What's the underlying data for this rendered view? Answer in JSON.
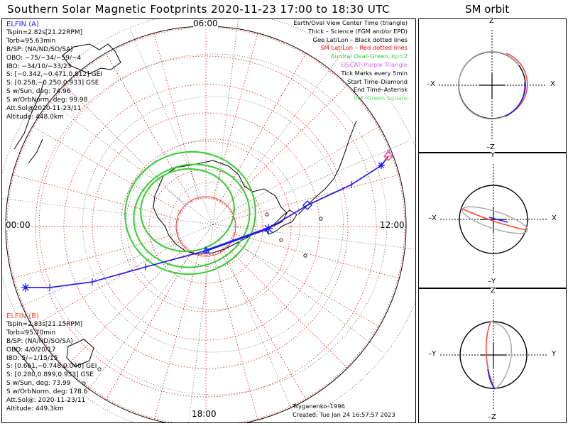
{
  "title": "Southern Solar Magnetic Footprints 2020-11-23 17:00 to 18:30 UTC",
  "orbit_title": "SM orbit",
  "colors": {
    "elfin_a": "#1a1aff",
    "elfin_b": "#ff4a3a",
    "grid": "#e03030",
    "oval": "#32cd32",
    "purple": "#cc66ff",
    "vlf": "#66dd66",
    "orbit_gray": "#aaaaaa"
  },
  "clock_labels": {
    "top": "06:00",
    "left": "00:00",
    "right": "12:00",
    "bottom": "18:00"
  },
  "elfin_a": {
    "name": "ELFIN (A)",
    "lines": [
      "Tspin=2.82s[21.22RPM]",
      "Torb=95.63min",
      "B/SP: (NA/ND/SO/SA)",
      "OBO: −75/−34/−59/−4",
      "IBO: −34/10/−33/23",
      "S: [−0.342,−0.471,0.812] GEI",
      "S: [0.258,−0.250,0.933] GSE",
      "S w/Sun, deg: 74.96",
      "S w/OrbNorm, deg: 99.98",
      "Att.Sol@2020-11-23/11",
      "Altitude: 448.0km"
    ]
  },
  "elfin_b": {
    "name": "ELFIN (B)",
    "lines": [
      "Tspin=2.83s[21.15RPM]",
      "Torb=95.70min",
      "B/SP: (NA/ND/SO/SA)",
      "OBO: 4/0/20/17",
      "IBO: 5/−1/15/15",
      "S: [0.661,−0.748,0.040] GEI",
      "S: [0.280,0.899,0.933] GSE",
      "S w/Sun, deg: 73.99",
      "S w/OrbNorm, deg: 178.6",
      "Att.Sol@: 2020-11-23/11",
      "Altitude: 449.3km"
    ]
  },
  "legend": [
    {
      "text": "Earth/Oval View Center Time (triangle)",
      "color": "#000000"
    },
    {
      "text": "Thick – Science (FGM and/or EPD)",
      "color": "#000000"
    },
    {
      "text": "Geo Lat/Lon – Black dotted lines",
      "color": "#000000"
    },
    {
      "text": "SM Lat/Lon – Red dotted lines",
      "color": "#ff0000"
    },
    {
      "text": "Auroral Oval–Green, kp=2",
      "color": "#33cc33"
    },
    {
      "text": "EISCAT–Purple Triangle",
      "color": "#cc66ff"
    },
    {
      "text": "Tick Marks every 5min",
      "color": "#000000"
    },
    {
      "text": "Start Time–Diamond",
      "color": "#000000"
    },
    {
      "text": "End Time–Asterisk",
      "color": "#000000"
    },
    {
      "text": "VLF–Green Square",
      "color": "#66dd66"
    }
  ],
  "credits": {
    "model": "Tsyganenko–1996",
    "created": "Created: Tue Jan 24 16:57:57 2023"
  },
  "orbit_panels": [
    {
      "top": "Z",
      "bottom": "–Z",
      "left": "–X",
      "right": "X"
    },
    {
      "top": "Y",
      "bottom": "–Y",
      "left": "–X",
      "right": "X"
    },
    {
      "top": "Z",
      "bottom": "–Z",
      "left": "–Y",
      "right": "Y"
    }
  ],
  "chart_data": {
    "type": "polar-map",
    "title": "Southern Solar Magnetic Footprints 2020-11-23 17:00 to 18:30 UTC",
    "projection": "south-pole SM coordinates, magnetic local time around the edge",
    "mlt_labels": [
      "00:00",
      "06:00",
      "12:00",
      "18:00"
    ],
    "series": [
      {
        "name": "ELFIN (A)",
        "color": "#1a1aff",
        "track_plot_xy": [
          [
            36,
            405
          ],
          [
            70,
            405
          ],
          [
            130,
            397
          ],
          [
            205,
            376
          ],
          [
            290,
            353
          ],
          [
            360,
            328
          ],
          [
            378,
            322
          ],
          [
            433,
            289
          ],
          [
            495,
            260
          ],
          [
            537,
            233
          ],
          [
            547,
            220
          ]
        ]
      },
      {
        "name": "ELFIN (B)",
        "color": "#ff4a3a",
        "track_plot_xy": [
          [
            36,
            405
          ],
          [
            70,
            405
          ],
          [
            130,
            397
          ],
          [
            205,
            376
          ],
          [
            290,
            353
          ],
          [
            365,
            325
          ],
          [
            378,
            322
          ],
          [
            433,
            289
          ],
          [
            495,
            260
          ],
          [
            537,
            233
          ],
          [
            547,
            220
          ]
        ]
      }
    ]
  }
}
